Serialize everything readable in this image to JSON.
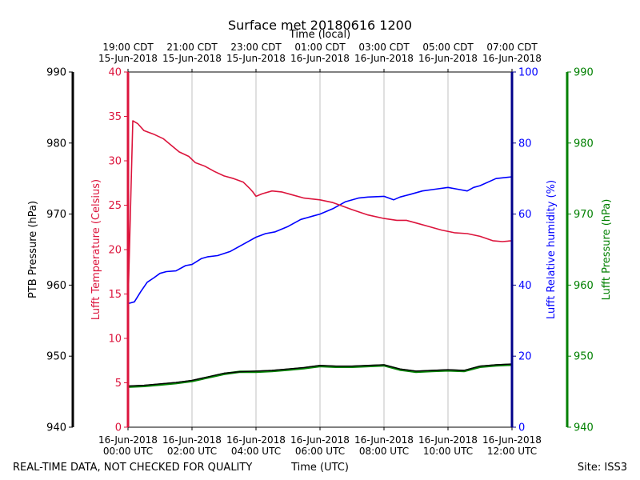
{
  "chart_data": {
    "type": "line",
    "title": "Surface met 20180616 1200",
    "top_axis_label": "Time (local)",
    "bottom_axis_label": "Time (UTC)",
    "footer_left": "REAL-TIME DATA, NOT CHECKED FOR QUALITY",
    "footer_right": "Site: ISS3",
    "x_range_hours_utc": [
      0,
      12
    ],
    "top_ticks": [
      {
        "t": 0,
        "line1": "19:00 CDT",
        "line2": "15-Jun-2018"
      },
      {
        "t": 2,
        "line1": "21:00 CDT",
        "line2": "15-Jun-2018"
      },
      {
        "t": 4,
        "line1": "23:00 CDT",
        "line2": "15-Jun-2018"
      },
      {
        "t": 6,
        "line1": "01:00 CDT",
        "line2": "16-Jun-2018"
      },
      {
        "t": 8,
        "line1": "03:00 CDT",
        "line2": "16-Jun-2018"
      },
      {
        "t": 10,
        "line1": "05:00 CDT",
        "line2": "16-Jun-2018"
      },
      {
        "t": 12,
        "line1": "07:00 CDT",
        "line2": "16-Jun-2018"
      }
    ],
    "bottom_ticks": [
      {
        "t": 0,
        "line1": "16-Jun-2018",
        "line2": "00:00 UTC"
      },
      {
        "t": 2,
        "line1": "16-Jun-2018",
        "line2": "02:00 UTC"
      },
      {
        "t": 4,
        "line1": "16-Jun-2018",
        "line2": "04:00 UTC"
      },
      {
        "t": 6,
        "line1": "16-Jun-2018",
        "line2": "06:00 UTC"
      },
      {
        "t": 8,
        "line1": "16-Jun-2018",
        "line2": "08:00 UTC"
      },
      {
        "t": 10,
        "line1": "16-Jun-2018",
        "line2": "10:00 UTC"
      },
      {
        "t": 12,
        "line1": "16-Jun-2018",
        "line2": "12:00 UTC"
      }
    ],
    "axes": {
      "ptb_pressure": {
        "label": "PTB Pressure (hPa)",
        "range": [
          940,
          990
        ],
        "ticks": [
          940,
          950,
          960,
          970,
          980,
          990
        ],
        "color": "#000000"
      },
      "temperature": {
        "label": "Lufft Temperature (Celsius)",
        "range": [
          0,
          40
        ],
        "ticks": [
          0,
          5,
          10,
          15,
          20,
          25,
          30,
          35,
          40
        ],
        "color": "#dc143c"
      },
      "humidity": {
        "label": "Lufft Relative humidity (%)",
        "range": [
          0,
          100
        ],
        "ticks": [
          0,
          20,
          40,
          60,
          80,
          100
        ],
        "color": "#0000ff"
      },
      "lufft_pressure": {
        "label": "Lufft Pressure (hPa)",
        "range": [
          940,
          990
        ],
        "ticks": [
          940,
          950,
          960,
          970,
          980,
          990
        ],
        "color": "#008000"
      }
    },
    "series": [
      {
        "name": "Lufft Temperature",
        "axis": "temperature",
        "color": "#dc143c",
        "x": [
          0,
          0.15,
          0.3,
          0.5,
          0.8,
          1.1,
          1.4,
          1.6,
          1.9,
          2.1,
          2.4,
          2.7,
          3.0,
          3.3,
          3.6,
          3.8,
          3.9,
          4.0,
          4.2,
          4.5,
          4.8,
          5.1,
          5.5,
          6.0,
          6.4,
          7.0,
          7.5,
          8.0,
          8.4,
          8.7,
          9.0,
          9.4,
          9.8,
          10.2,
          10.6,
          11.0,
          11.4,
          11.7,
          12.0
        ],
        "values": [
          13.7,
          34.5,
          34.2,
          33.4,
          33.0,
          32.5,
          31.6,
          31.0,
          30.5,
          29.8,
          29.4,
          28.8,
          28.3,
          28.0,
          27.6,
          26.9,
          26.5,
          26.0,
          26.3,
          26.6,
          26.5,
          26.2,
          25.8,
          25.6,
          25.3,
          24.5,
          23.9,
          23.5,
          23.3,
          23.3,
          23.0,
          22.6,
          22.2,
          21.9,
          21.8,
          21.5,
          21.0,
          20.9,
          21.0
        ]
      },
      {
        "name": "Lufft Relative humidity",
        "axis": "humidity",
        "color": "#0000ff",
        "x": [
          0,
          0.2,
          0.4,
          0.6,
          0.8,
          1.0,
          1.2,
          1.5,
          1.8,
          2.0,
          2.3,
          2.5,
          2.8,
          3.2,
          3.5,
          3.8,
          4.0,
          4.3,
          4.6,
          5.0,
          5.4,
          5.8,
          6.0,
          6.4,
          6.8,
          7.2,
          7.5,
          8.0,
          8.3,
          8.5,
          8.8,
          9.2,
          9.6,
          10.0,
          10.3,
          10.6,
          10.8,
          11.0,
          11.5,
          12.0
        ],
        "values": [
          34.8,
          35.3,
          38.2,
          40.8,
          42.0,
          43.3,
          43.8,
          44.0,
          45.5,
          45.8,
          47.5,
          48.0,
          48.3,
          49.5,
          51.0,
          52.5,
          53.5,
          54.5,
          55.0,
          56.5,
          58.5,
          59.5,
          60.0,
          61.5,
          63.5,
          64.5,
          64.8,
          65.0,
          64.0,
          64.8,
          65.5,
          66.5,
          67.0,
          67.5,
          67.0,
          66.5,
          67.5,
          68.0,
          70.0,
          70.5
        ]
      },
      {
        "name": "PTB Pressure",
        "axis": "ptb_pressure",
        "color": "#000000",
        "x": [
          0,
          0.5,
          1.0,
          1.5,
          2.0,
          2.5,
          3.0,
          3.5,
          4.0,
          4.5,
          5.0,
          5.5,
          6.0,
          6.5,
          7.0,
          7.5,
          8.0,
          8.5,
          9.0,
          9.5,
          10.0,
          10.5,
          11.0,
          11.5,
          12.0
        ],
        "values": [
          945.8,
          945.9,
          946.1,
          946.3,
          946.6,
          947.1,
          947.6,
          947.8,
          947.9,
          948.0,
          948.2,
          948.4,
          948.7,
          948.6,
          948.6,
          948.7,
          948.8,
          948.2,
          947.9,
          948.0,
          948.1,
          948.0,
          948.6,
          948.8,
          948.9
        ]
      },
      {
        "name": "Lufft Pressure",
        "axis": "lufft_pressure",
        "color": "#008000",
        "x": [
          0,
          0.5,
          1.0,
          1.5,
          2.0,
          2.5,
          3.0,
          3.5,
          4.0,
          4.5,
          5.0,
          5.5,
          6.0,
          6.5,
          7.0,
          7.5,
          8.0,
          8.5,
          9.0,
          9.5,
          10.0,
          10.5,
          11.0,
          11.5,
          12.0
        ],
        "values": [
          945.7,
          945.8,
          946.0,
          946.2,
          946.5,
          947.0,
          947.5,
          947.8,
          947.8,
          947.9,
          948.1,
          948.3,
          948.6,
          948.5,
          948.5,
          948.6,
          948.7,
          948.1,
          947.8,
          947.9,
          948.0,
          947.9,
          948.5,
          948.7,
          948.8
        ]
      }
    ]
  }
}
